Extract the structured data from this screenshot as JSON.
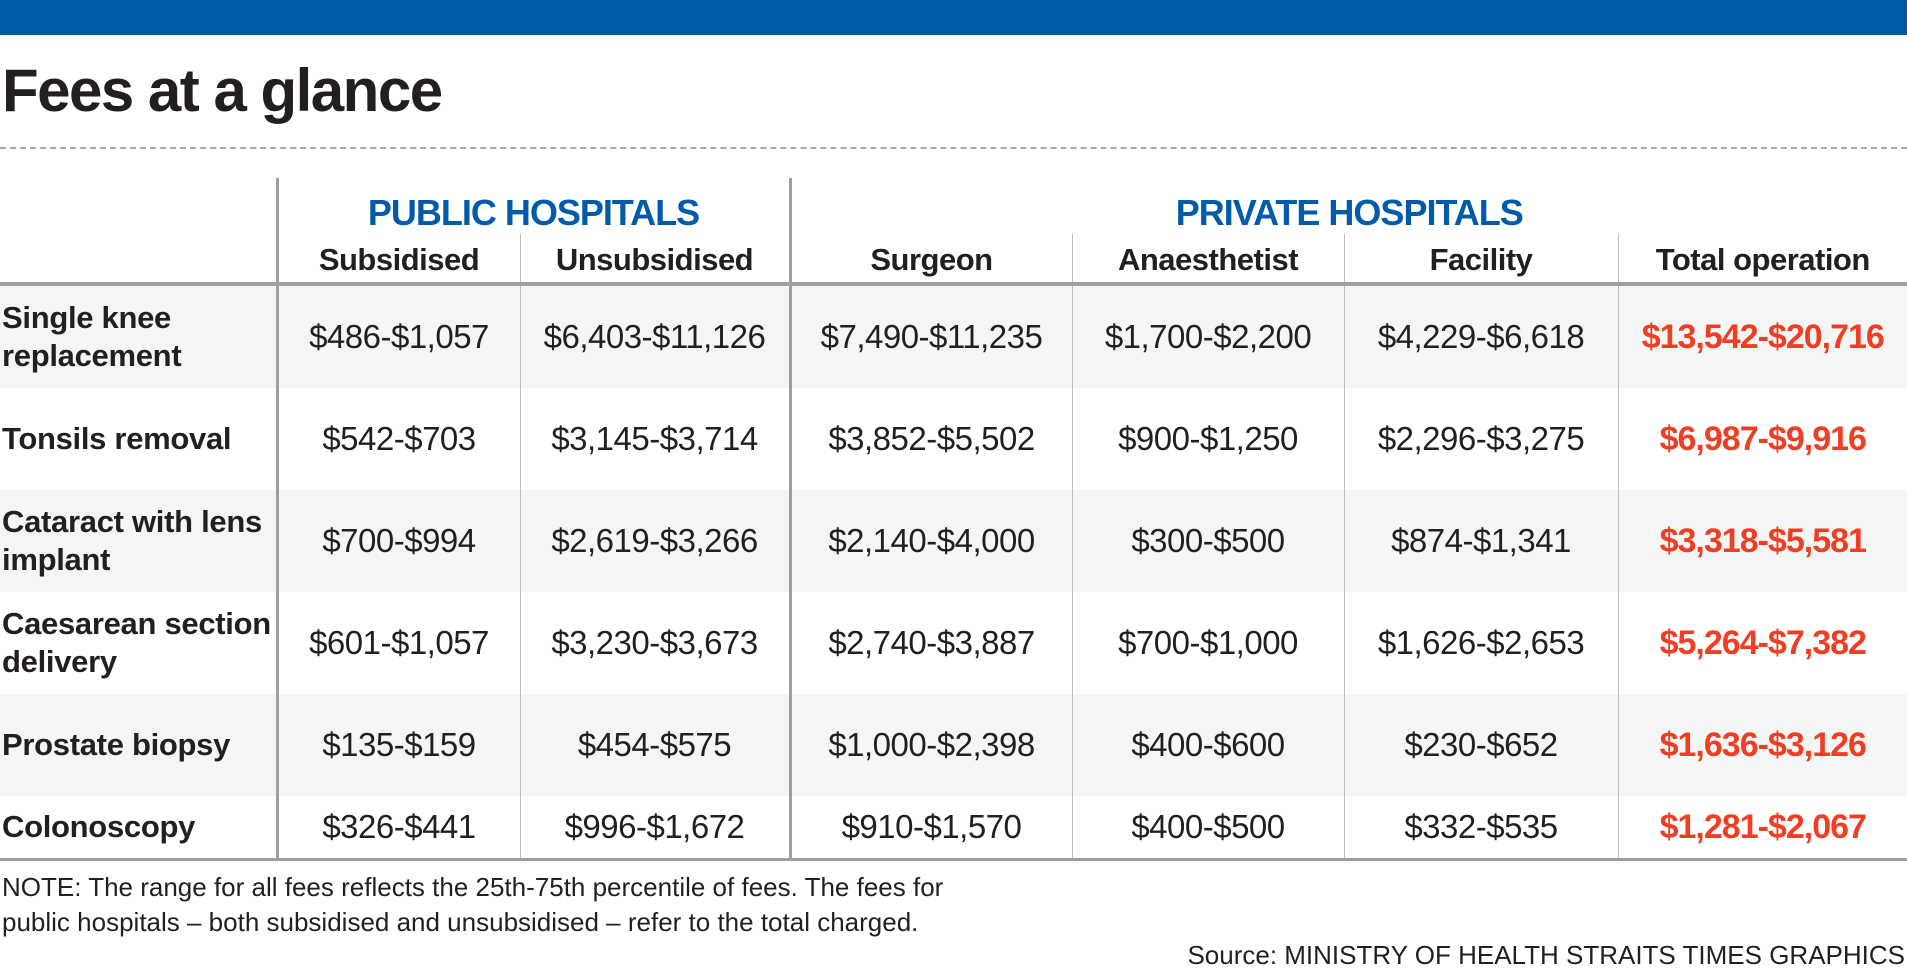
{
  "title": "Fees at a glance",
  "groups": {
    "public": "PUBLIC HOSPITALS",
    "private": "PRIVATE HOSPITALS"
  },
  "columns": [
    "Subsidised",
    "Unsubsidised",
    "Surgeon",
    "Anaesthetist",
    "Facility",
    "Total operation"
  ],
  "rows": [
    {
      "label": "Single knee replacement",
      "values": [
        "$486-$1,057",
        "$6,403-$11,126",
        "$7,490-$11,235",
        "$1,700-$2,200",
        "$4,229-$6,618",
        "$13,542-$20,716"
      ]
    },
    {
      "label": "Tonsils removal",
      "values": [
        "$542-$703",
        "$3,145-$3,714",
        "$3,852-$5,502",
        "$900-$1,250",
        "$2,296-$3,275",
        "$6,987-$9,916"
      ]
    },
    {
      "label": "Cataract with lens implant",
      "values": [
        "$700-$994",
        "$2,619-$3,266",
        "$2,140-$4,000",
        "$300-$500",
        "$874-$1,341",
        "$3,318-$5,581"
      ]
    },
    {
      "label": "Caesarean section delivery",
      "values": [
        "$601-$1,057",
        "$3,230-$3,673",
        "$2,740-$3,887",
        "$700-$1,000",
        "$1,626-$2,653",
        "$5,264-$7,382"
      ]
    },
    {
      "label": "Prostate biopsy",
      "values": [
        "$135-$159",
        "$454-$575",
        "$1,000-$2,398",
        "$400-$600",
        "$230-$652",
        "$1,636-$3,126"
      ]
    },
    {
      "label": "Colonoscopy",
      "values": [
        "$326-$441",
        "$996-$1,672",
        "$910-$1,570",
        "$400-$500",
        "$332-$535",
        "$1,281-$2,067"
      ]
    }
  ],
  "note": "NOTE: The range for all fees reflects the 25th-75th percentile of fees. The fees for public hospitals – both subsidised and unsubsidised – refer to the total charged.",
  "source": "Source: MINISTRY OF HEALTH   STRAITS TIMES GRAPHICS",
  "colors": {
    "brand_blue": "#005bab",
    "total_red": "#ef3e23"
  }
}
